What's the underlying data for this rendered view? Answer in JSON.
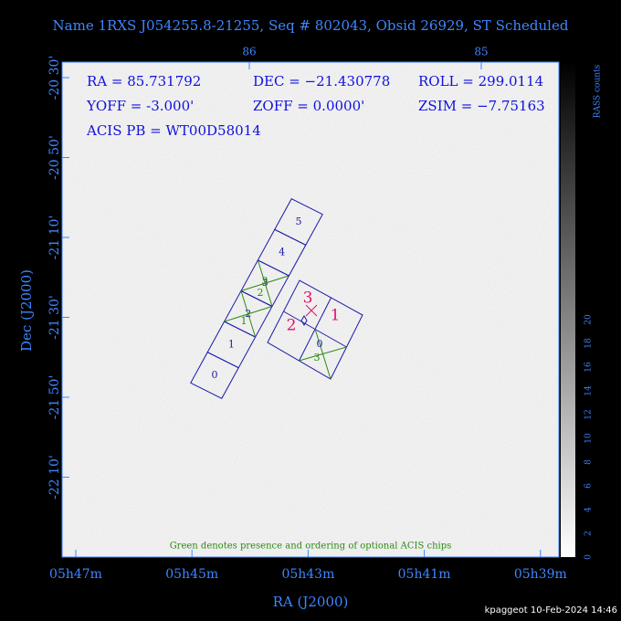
{
  "header": {
    "title": "Name 1RXS J054255.8-21255, Seq # 802043, Obsid 26929, ST Scheduled"
  },
  "info": {
    "ra": "RA = 85.731792",
    "dec": "DEC = −21.430778",
    "roll": "ROLL = 299.0114",
    "yoff": "YOFF =  -3.000'",
    "zoff": "ZOFF =  0.0000'",
    "zsim": "ZSIM = −7.75163",
    "pb": "ACIS PB = WT00D58014"
  },
  "top_ticks": [
    "86",
    "85"
  ],
  "dec_ticks": [
    "-20 30'",
    "-20 50'",
    "-21 10'",
    "-21 30'",
    "-21 50'",
    "-22 10'"
  ],
  "ra_ticks": [
    "05h47m",
    "05h45m",
    "05h43m",
    "05h41m",
    "05h39m"
  ],
  "x_label": "RA (J2000)",
  "y_label": "Dec (J2000)",
  "colorbar": {
    "label": "RASS counts",
    "ticks": [
      "0",
      "2",
      "4",
      "6",
      "8",
      "10",
      "12",
      "14",
      "16",
      "18",
      "20"
    ]
  },
  "chips_s": [
    "0",
    "1",
    "2",
    "3",
    "4",
    "5"
  ],
  "optional_s": [
    "3",
    "2",
    "1"
  ],
  "chips_i": [
    "3",
    "1",
    "2"
  ],
  "chips_i_lower": [
    "0",
    "3"
  ],
  "note": "Green denotes presence and ordering of optional ACIS chips",
  "footer": "kpaggeot 10-Feb-2024 14:46"
}
